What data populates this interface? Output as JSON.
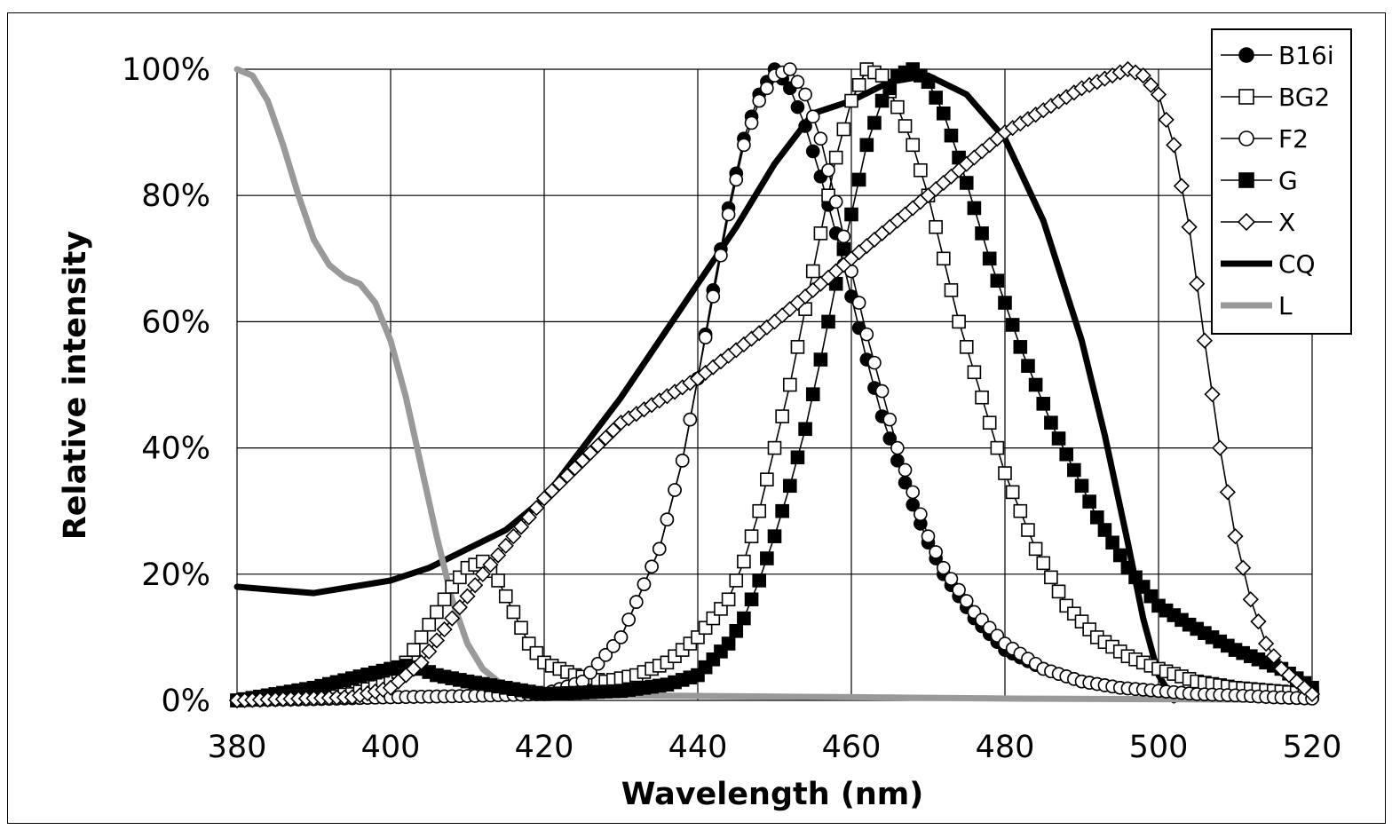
{
  "chart_data": {
    "type": "line",
    "title": "",
    "xlabel": "Wavelength (nm)",
    "ylabel": "Relative intensity",
    "xlim": [
      380,
      520
    ],
    "ylim": [
      0,
      100
    ],
    "x_ticks": [
      380,
      400,
      420,
      440,
      460,
      480,
      500,
      520
    ],
    "x_tick_labels": [
      "380",
      "400",
      "420",
      "440",
      "460",
      "480",
      "500",
      "520"
    ],
    "y_ticks": [
      0,
      20,
      40,
      60,
      80,
      100
    ],
    "y_tick_labels": [
      "0%",
      "20%",
      "40%",
      "60%",
      "80%",
      "100%"
    ],
    "grid": true,
    "legend_position": "top-right",
    "series": [
      {
        "name": "B16i",
        "marker": "filled-circle",
        "color": "#000000",
        "x": [
          380,
          390,
          400,
          410,
          420,
          425,
          430,
          435,
          438,
          440,
          442,
          444,
          446,
          448,
          450,
          452,
          454,
          456,
          458,
          460,
          462,
          464,
          466,
          468,
          470,
          472,
          476,
          480,
          485,
          490,
          495,
          500,
          505,
          510,
          515,
          520
        ],
        "y": [
          0,
          0.2,
          0.5,
          0.7,
          1,
          3,
          10,
          24,
          38,
          51,
          65,
          78,
          89,
          96,
          100,
          97,
          91,
          83,
          74,
          64,
          54,
          45,
          38,
          31,
          25,
          20,
          13,
          8,
          5,
          3,
          2,
          1.5,
          1,
          0.8,
          0.5,
          0.3
        ]
      },
      {
        "name": "BG2",
        "marker": "open-square",
        "color": "#000000",
        "x": [
          380,
          395,
          400,
          402,
          404,
          406,
          408,
          410,
          412,
          414,
          416,
          418,
          420,
          424,
          428,
          432,
          436,
          440,
          444,
          446,
          448,
          450,
          452,
          454,
          456,
          458,
          460,
          462,
          464,
          466,
          468,
          470,
          472,
          474,
          476,
          478,
          480,
          484,
          488,
          492,
          496,
          500,
          505,
          510,
          515,
          520
        ],
        "y": [
          0,
          1,
          3,
          6,
          10,
          14,
          18,
          21,
          22,
          19,
          14,
          9,
          6,
          4,
          3,
          4,
          6,
          10,
          16,
          22,
          30,
          40,
          50,
          62,
          74,
          86,
          95,
          100,
          99,
          94,
          88,
          80,
          70,
          60,
          52,
          44,
          36,
          24,
          15,
          10,
          7,
          5,
          3,
          2,
          1.5,
          1
        ]
      },
      {
        "name": "F2",
        "marker": "open-circle",
        "color": "#000000",
        "x": [
          380,
          390,
          400,
          410,
          420,
          425,
          430,
          435,
          438,
          440,
          442,
          444,
          446,
          448,
          450,
          452,
          454,
          456,
          458,
          460,
          462,
          464,
          466,
          468,
          470,
          472,
          476,
          480,
          485,
          490,
          495,
          500,
          505,
          510,
          515,
          520
        ],
        "y": [
          0,
          0.2,
          0.5,
          0.7,
          1,
          3,
          10,
          24,
          38,
          51,
          64,
          77,
          88,
          95,
          99,
          100,
          96,
          89,
          79,
          68,
          58,
          49,
          40,
          33,
          26,
          21,
          14,
          9,
          5,
          3,
          2,
          1.5,
          1,
          0.8,
          0.5,
          0.3
        ]
      },
      {
        "name": "G",
        "marker": "filled-square",
        "color": "#000000",
        "x": [
          380,
          390,
          400,
          402,
          404,
          406,
          410,
          420,
          430,
          436,
          440,
          444,
          446,
          448,
          450,
          452,
          454,
          456,
          458,
          460,
          462,
          464,
          466,
          468,
          470,
          472,
          474,
          476,
          478,
          480,
          482,
          484,
          486,
          488,
          490,
          492,
          494,
          496,
          498,
          500,
          504,
          510,
          516,
          520
        ],
        "y": [
          0,
          2,
          5,
          5.5,
          5,
          4,
          3,
          1,
          1.5,
          2.5,
          4,
          9,
          13,
          19,
          26,
          34,
          43,
          54,
          66,
          77,
          88,
          95,
          99,
          100,
          98,
          93,
          86,
          78,
          70,
          63,
          56,
          50,
          44,
          39,
          34,
          29,
          25,
          21,
          18,
          15,
          12,
          8,
          5,
          2
        ]
      },
      {
        "name": "X",
        "marker": "open-diamond",
        "color": "#000000",
        "x": [
          380,
          395,
          400,
          404,
          408,
          412,
          416,
          420,
          430,
          440,
          450,
          460,
          470,
          480,
          490,
          494,
          496,
          498,
          500,
          502,
          504,
          506,
          508,
          510,
          512,
          514,
          516,
          520
        ],
        "y": [
          0,
          0.5,
          2,
          6,
          13,
          20,
          26,
          32,
          44,
          51,
          60,
          70,
          80,
          90,
          97,
          99,
          100,
          99,
          96,
          88,
          75,
          57,
          40,
          26,
          16,
          9,
          5,
          1
        ]
      },
      {
        "name": "CQ",
        "marker": "none",
        "color": "#000000",
        "x": [
          380,
          385,
          390,
          395,
          400,
          405,
          410,
          415,
          420,
          425,
          430,
          435,
          440,
          445,
          450,
          455,
          460,
          465,
          470,
          475,
          480,
          485,
          490,
          493,
          496,
          498,
          500,
          502
        ],
        "y": [
          18,
          17.5,
          17,
          18,
          19,
          21,
          24,
          27,
          32,
          40,
          48,
          57,
          66,
          75,
          85,
          93,
          95,
          98,
          99,
          96,
          89,
          76,
          57,
          42,
          25,
          13,
          4,
          0
        ]
      },
      {
        "name": "L",
        "marker": "none",
        "color": "#999999",
        "x": [
          380,
          382,
          384,
          386,
          388,
          390,
          392,
          394,
          396,
          398,
          400,
          402,
          404,
          406,
          408,
          410,
          412,
          414,
          416,
          418,
          420,
          430,
          440,
          460,
          480,
          500,
          520
        ],
        "y": [
          100,
          99,
          95,
          88,
          80,
          73,
          69,
          67,
          66,
          63,
          57,
          48,
          37,
          26,
          16,
          9,
          5,
          3,
          2,
          1.5,
          1,
          0.8,
          0.7,
          0.5,
          0.3,
          0.2,
          0.1
        ]
      }
    ]
  }
}
